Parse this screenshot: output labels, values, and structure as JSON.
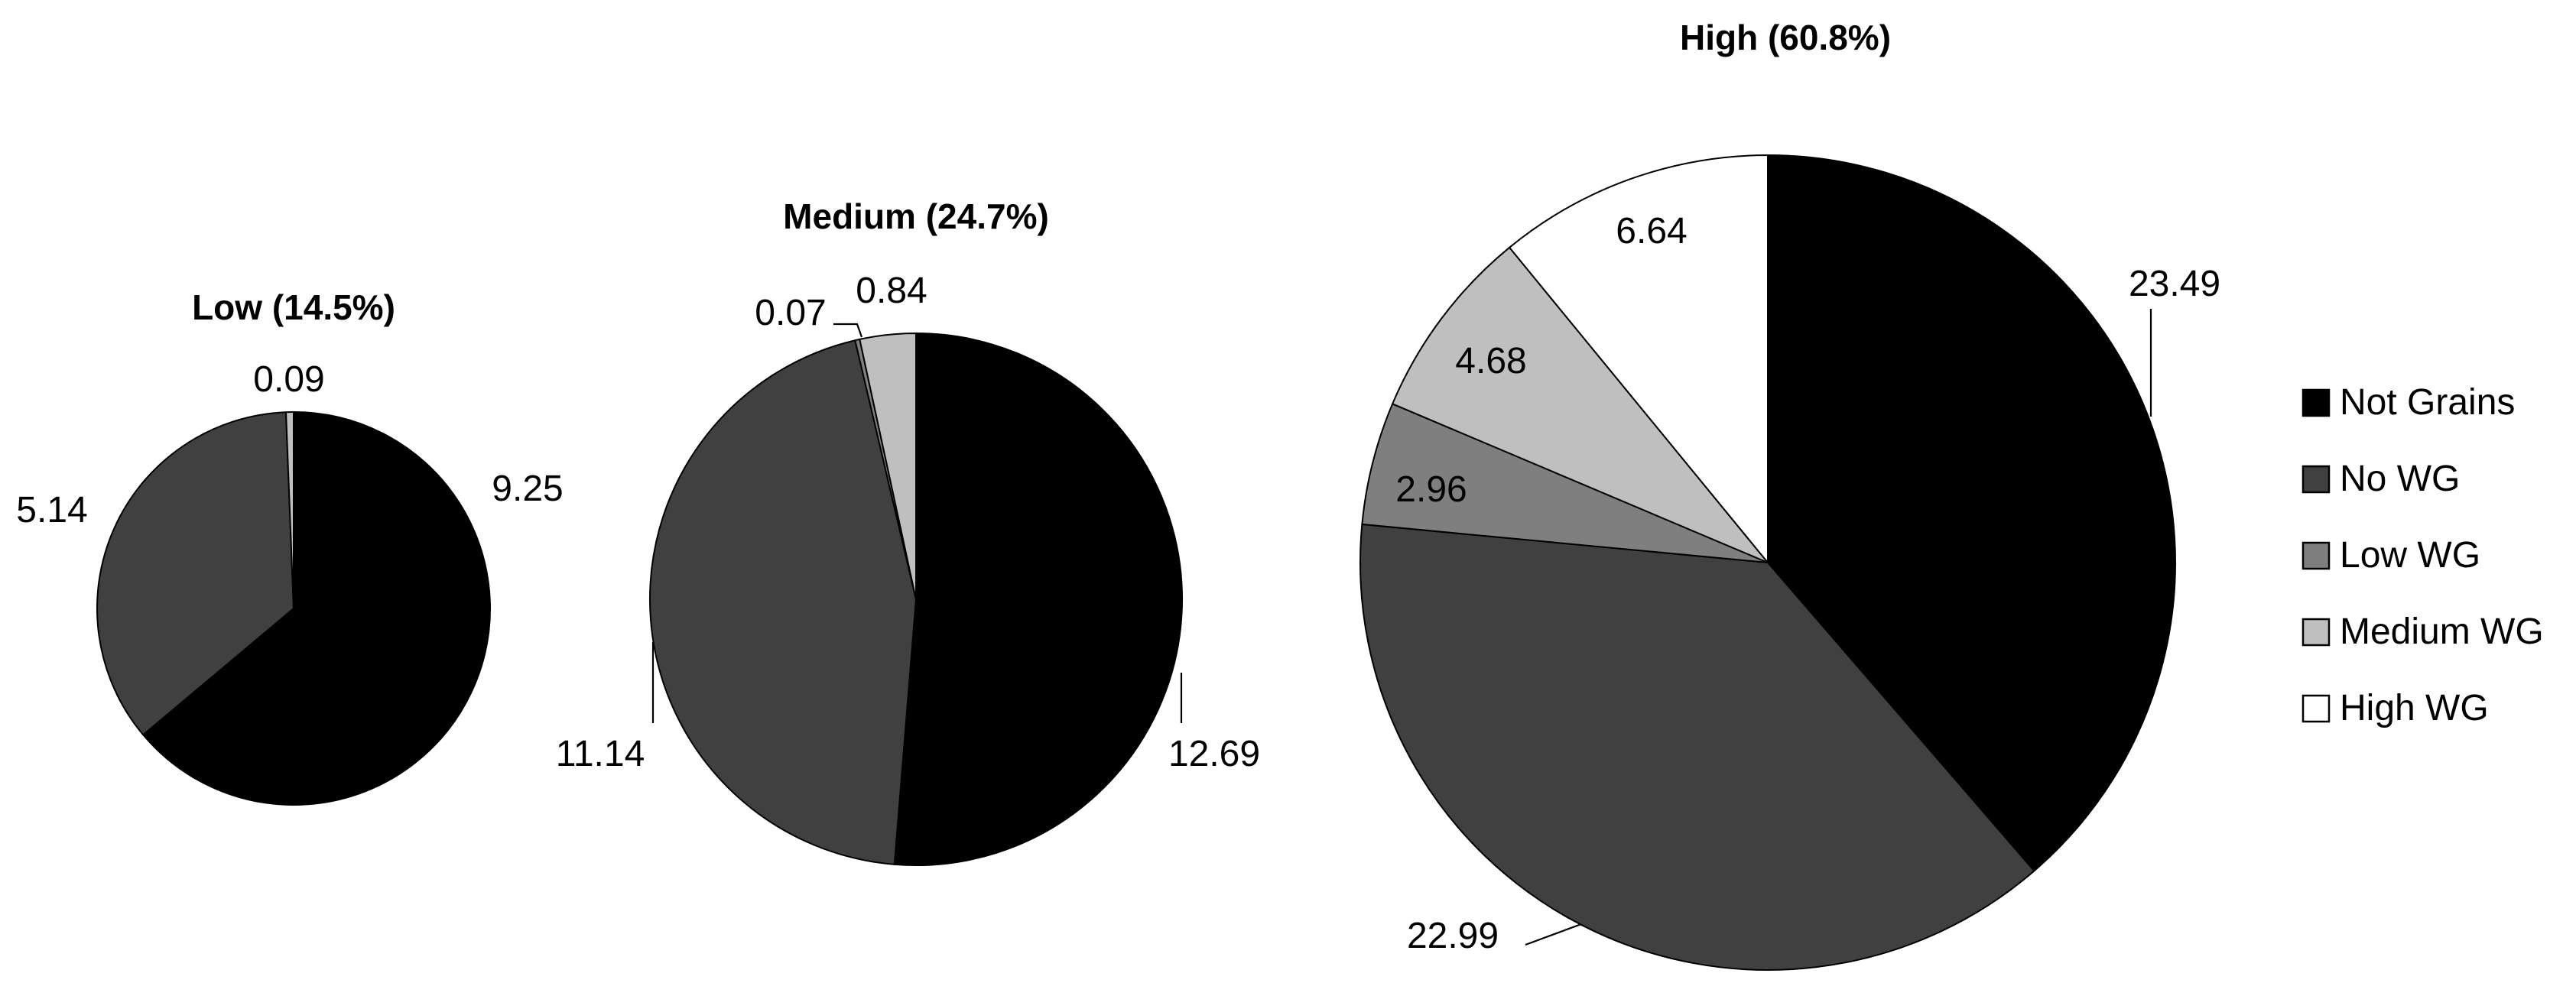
{
  "chart_data": [
    {
      "type": "pie",
      "title": "Low (14.5%)",
      "categories": [
        "Not Grains",
        "No WG",
        "Low WG",
        "Medium WG",
        "High WG"
      ],
      "values": [
        9.25,
        5.14,
        0,
        0.09,
        0
      ],
      "labels": [
        "9.25",
        "5.14",
        "",
        "0.09",
        ""
      ]
    },
    {
      "type": "pie",
      "title": "Medium (24.7%)",
      "categories": [
        "Not Grains",
        "No WG",
        "Low WG",
        "Medium WG",
        "High WG"
      ],
      "values": [
        12.69,
        11.14,
        0.07,
        0.84,
        0
      ],
      "labels": [
        "12.69",
        "11.14",
        "0.07",
        "0.84",
        ""
      ]
    },
    {
      "type": "pie",
      "title": "High (60.8%)",
      "categories": [
        "Not Grains",
        "No WG",
        "Low WG",
        "Medium WG",
        "High WG"
      ],
      "values": [
        23.49,
        22.99,
        2.96,
        4.68,
        6.64
      ],
      "labels": [
        "23.49",
        "22.99",
        "2.96",
        "4.68",
        "6.64"
      ]
    }
  ],
  "legend": {
    "placement": "right",
    "items": [
      {
        "label": "Not Grains",
        "color": "#000000"
      },
      {
        "label": "No WG",
        "color": "#404040"
      },
      {
        "label": "Low WG",
        "color": "#7f7f7f"
      },
      {
        "label": "Medium WG",
        "color": "#bfbfbf"
      },
      {
        "label": "High WG",
        "color": "#ffffff"
      }
    ]
  },
  "colors": {
    "Not Grains": "#000000",
    "No WG": "#404040",
    "Low WG": "#7f7f7f",
    "Medium WG": "#bfbfbf",
    "High WG": "#ffffff"
  }
}
